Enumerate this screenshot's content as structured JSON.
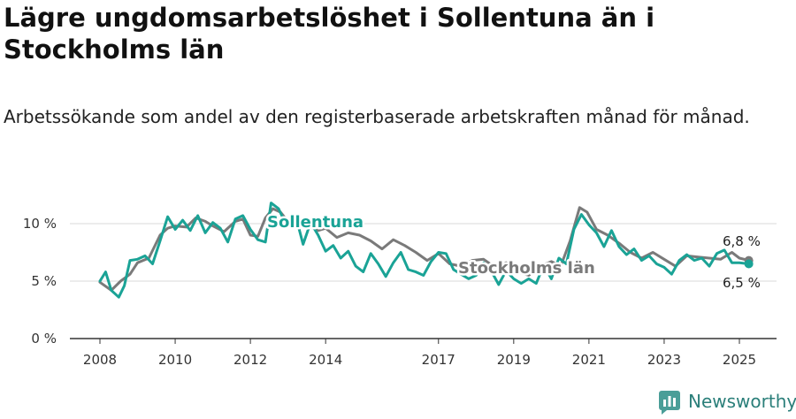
{
  "title": "Lägre ungdomsarbetslöshet i Sollentuna än i Stockholms län",
  "subtitle": "Arbetssökande som andel av den registerbaserade arbetskraften månad för månad.",
  "brand": "Newsworthy",
  "colors": {
    "Sollentuna": "#1aa396",
    "Stockholms län": "#7a7a7a",
    "grid": "#d9d9d9",
    "axis": "#333333"
  },
  "chart_data": {
    "type": "line",
    "title": "Lägre ungdomsarbetslöshet i Sollentuna än i Stockholms län",
    "ylim": [
      0,
      11
    ],
    "yticks": [
      0,
      5,
      10
    ],
    "ytick_labels": [
      "0 %",
      "5 %",
      "10 %"
    ],
    "xlim": [
      2007.2,
      2025.9
    ],
    "xticks": [
      2008,
      2010,
      2012,
      2014,
      2017,
      2019,
      2021,
      2023,
      2025
    ],
    "xtick_labels": [
      "2008",
      "2010",
      "2012",
      "2014",
      "2017",
      "2019",
      "2021",
      "2023",
      "2025"
    ],
    "grid": true,
    "series": [
      {
        "name": "Stockholms län",
        "end_label": "6,8 %",
        "x": [
          2008.0,
          2008.3,
          2008.55,
          2008.8,
          2009.0,
          2009.3,
          2009.6,
          2009.8,
          2010.0,
          2010.3,
          2010.55,
          2010.8,
          2011.0,
          2011.3,
          2011.6,
          2011.8,
          2012.0,
          2012.2,
          2012.4,
          2012.6,
          2012.8,
          2013.0,
          2013.3,
          2013.6,
          2013.8,
          2014.0,
          2014.3,
          2014.6,
          2014.9,
          2015.2,
          2015.5,
          2015.8,
          2016.1,
          2016.4,
          2016.7,
          2017.0,
          2017.3,
          2017.6,
          2017.9,
          2018.2,
          2018.5,
          2018.8,
          2019.1,
          2019.4,
          2019.7,
          2020.0,
          2020.25,
          2020.5,
          2020.75,
          2020.95,
          2021.2,
          2021.5,
          2021.8,
          2022.1,
          2022.4,
          2022.7,
          2023.0,
          2023.3,
          2023.6,
          2023.9,
          2024.2,
          2024.5,
          2024.8,
          2025.0,
          2025.25
        ],
        "values": [
          4.9,
          4.2,
          5.0,
          5.6,
          6.6,
          7.0,
          9.0,
          9.6,
          9.8,
          9.7,
          10.5,
          10.2,
          9.8,
          9.3,
          10.2,
          10.4,
          9.0,
          8.9,
          10.5,
          11.3,
          11.0,
          10.2,
          10.4,
          9.7,
          9.4,
          9.6,
          8.8,
          9.2,
          9.0,
          8.5,
          7.8,
          8.6,
          8.1,
          7.5,
          6.8,
          7.4,
          6.5,
          6.3,
          6.8,
          6.9,
          6.2,
          6.6,
          5.8,
          5.5,
          6.3,
          6.7,
          6.3,
          8.5,
          11.4,
          11.0,
          9.5,
          9.0,
          8.3,
          7.5,
          7.0,
          7.5,
          6.9,
          6.3,
          7.2,
          7.1,
          7.0,
          6.9,
          7.5,
          7.0,
          6.8
        ]
      },
      {
        "name": "Sollentuna",
        "end_label": "6,5 %",
        "x": [
          2008.0,
          2008.15,
          2008.3,
          2008.5,
          2008.65,
          2008.8,
          2009.0,
          2009.2,
          2009.4,
          2009.6,
          2009.8,
          2010.0,
          2010.2,
          2010.4,
          2010.6,
          2010.8,
          2011.0,
          2011.2,
          2011.4,
          2011.6,
          2011.8,
          2012.0,
          2012.2,
          2012.4,
          2012.55,
          2012.75,
          2012.95,
          2013.2,
          2013.4,
          2013.6,
          2013.8,
          2014.0,
          2014.2,
          2014.4,
          2014.6,
          2014.8,
          2015.0,
          2015.2,
          2015.4,
          2015.6,
          2015.8,
          2016.0,
          2016.2,
          2016.4,
          2016.6,
          2016.8,
          2017.0,
          2017.2,
          2017.4,
          2017.6,
          2017.8,
          2018.0,
          2018.2,
          2018.4,
          2018.6,
          2018.8,
          2019.0,
          2019.2,
          2019.4,
          2019.6,
          2019.8,
          2020.0,
          2020.2,
          2020.4,
          2020.6,
          2020.8,
          2021.0,
          2021.2,
          2021.4,
          2021.6,
          2021.8,
          2022.0,
          2022.2,
          2022.4,
          2022.6,
          2022.8,
          2023.0,
          2023.2,
          2023.4,
          2023.6,
          2023.8,
          2024.0,
          2024.2,
          2024.4,
          2024.6,
          2024.8,
          2025.0,
          2025.25
        ],
        "values": [
          5.0,
          5.8,
          4.2,
          3.6,
          4.6,
          6.8,
          6.9,
          7.2,
          6.5,
          8.5,
          10.6,
          9.5,
          10.3,
          9.4,
          10.7,
          9.2,
          10.1,
          9.6,
          8.4,
          10.4,
          10.7,
          9.5,
          8.6,
          8.4,
          11.8,
          11.3,
          9.9,
          10.7,
          8.2,
          10.1,
          9.0,
          7.6,
          8.1,
          7.0,
          7.6,
          6.3,
          5.8,
          7.4,
          6.5,
          5.4,
          6.6,
          7.5,
          6.0,
          5.8,
          5.5,
          6.7,
          7.5,
          7.4,
          6.0,
          5.6,
          5.2,
          5.5,
          6.6,
          5.9,
          4.7,
          5.9,
          5.2,
          4.8,
          5.2,
          4.8,
          6.4,
          5.2,
          7.0,
          6.5,
          9.5,
          10.8,
          9.9,
          9.2,
          8.0,
          9.4,
          8.0,
          7.3,
          7.8,
          6.8,
          7.2,
          6.5,
          6.2,
          5.6,
          6.8,
          7.3,
          6.8,
          7.0,
          6.3,
          7.4,
          7.7,
          6.6,
          6.6,
          6.5
        ]
      }
    ]
  }
}
